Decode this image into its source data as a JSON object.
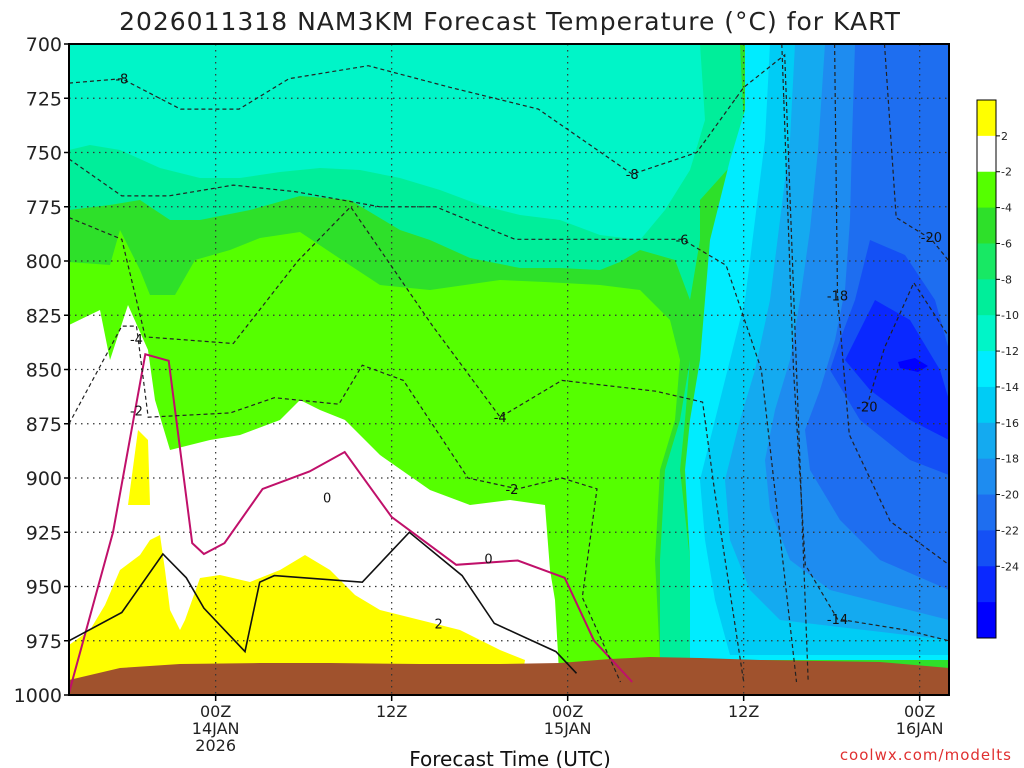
{
  "chart_data": {
    "type": "heatmap",
    "title": "2026011318 NAM3KM Forecast Temperature (°C) for KART",
    "xlabel": "Forecast Time (UTC)",
    "ylabel": "",
    "credit": "coolwx.com/modelts",
    "y_axis": {
      "units": "hPa",
      "range": [
        700,
        1000
      ],
      "ticks": [
        700,
        725,
        750,
        775,
        800,
        825,
        850,
        875,
        900,
        925,
        950,
        975,
        1000
      ]
    },
    "x_axis": {
      "range_hours": [
        -5,
        25
      ],
      "ticks": [
        {
          "hour": 0,
          "lines": [
            "00Z",
            "14JAN",
            "2026"
          ]
        },
        {
          "hour": 6,
          "lines": [
            "12Z"
          ]
        },
        {
          "hour": 12,
          "lines": [
            "00Z",
            "15JAN"
          ]
        },
        {
          "hour": 18,
          "lines": [
            "12Z"
          ]
        },
        {
          "hour": 24,
          "lines": [
            "00Z",
            "16JAN"
          ]
        }
      ],
      "grid": true
    },
    "colorbar": {
      "levels": [
        -26,
        -24,
        -22,
        -20,
        -18,
        -16,
        -14,
        -12,
        -10,
        -8,
        -6,
        -4,
        -2,
        2,
        4
      ],
      "colors": [
        "#0000ff",
        "#0a28ff",
        "#1450f5",
        "#1e6ef0",
        "#1e8cf0",
        "#14aaf0",
        "#00ccf5",
        "#00ecff",
        "#00f5c8",
        "#00ee9a",
        "#18e864",
        "#2ee02a",
        "#55ff00",
        "#ffffff",
        "#ffff00"
      ],
      "tick_labels": [
        "2",
        "-2",
        "-4",
        "-6",
        "-8",
        "-10",
        "-12",
        "-14",
        "-16",
        "-18",
        "-20",
        "-22",
        "-24"
      ]
    },
    "contour_labels": [
      {
        "text": "-8",
        "hour": -3.2,
        "pressure": 716
      },
      {
        "text": "-8",
        "hour": 14.2,
        "pressure": 760
      },
      {
        "text": "-6",
        "hour": 15.9,
        "pressure": 790
      },
      {
        "text": "-4",
        "hour": -2.7,
        "pressure": 836
      },
      {
        "text": "-2",
        "hour": -2.7,
        "pressure": 869
      },
      {
        "text": "-4",
        "hour": 9.7,
        "pressure": 872
      },
      {
        "text": "-2",
        "hour": 10.1,
        "pressure": 905
      },
      {
        "text": "0",
        "hour": 3.8,
        "pressure": 909
      },
      {
        "text": "0",
        "hour": 9.3,
        "pressure": 937
      },
      {
        "text": "2",
        "hour": 7.6,
        "pressure": 967
      },
      {
        "text": "-18",
        "hour": 21.2,
        "pressure": 816
      },
      {
        "text": "-20",
        "hour": 24.4,
        "pressure": 789
      },
      {
        "text": "-20",
        "hour": 22.2,
        "pressure": 867
      },
      {
        "text": "-14",
        "hour": 21.2,
        "pressure": 965
      }
    ],
    "series": [
      {
        "name": "freezing-line-0C",
        "points": [
          [
            -5,
            0.999
          ],
          [
            -3.5,
            0.925
          ],
          [
            -2.4,
            0.843
          ],
          [
            -1.6,
            0.846
          ],
          [
            -0.8,
            0.93
          ],
          [
            -0.4,
            0.935
          ],
          [
            0.3,
            0.93
          ],
          [
            1.6,
            0.905
          ],
          [
            3.2,
            0.897
          ],
          [
            4.4,
            0.888
          ],
          [
            6.0,
            0.918
          ],
          [
            8.2,
            0.94
          ],
          [
            10.3,
            0.938
          ],
          [
            11.9,
            0.946
          ],
          [
            12.9,
            0.975
          ],
          [
            14.2,
            0.994
          ]
        ]
      },
      {
        "name": "2C-line",
        "points": [
          [
            -5,
            0.975
          ],
          [
            -3.2,
            0.962
          ],
          [
            -1.8,
            0.935
          ],
          [
            -1.0,
            0.946
          ],
          [
            -0.4,
            0.96
          ],
          [
            1.0,
            0.98
          ],
          [
            1.5,
            0.948
          ],
          [
            2.0,
            0.945
          ],
          [
            5.0,
            0.948
          ],
          [
            6.6,
            0.925
          ],
          [
            8.4,
            0.945
          ],
          [
            9.5,
            0.967
          ],
          [
            11.6,
            0.98
          ],
          [
            12.3,
            0.99
          ]
        ]
      },
      {
        "name": "-2C-line",
        "points": [
          [
            -5,
            0.875
          ],
          [
            -3.2,
            0.83
          ],
          [
            -2.7,
            0.83
          ],
          [
            -2.3,
            0.872
          ],
          [
            0.5,
            0.87
          ],
          [
            2.0,
            0.863
          ],
          [
            4.2,
            0.866
          ],
          [
            5.0,
            0.848
          ],
          [
            6.4,
            0.855
          ],
          [
            8.6,
            0.9
          ],
          [
            10.3,
            0.905
          ],
          [
            11.8,
            0.9
          ],
          [
            13.0,
            0.905
          ],
          [
            12.5,
            0.955
          ],
          [
            13.8,
            0.994
          ]
        ]
      },
      {
        "name": "-4C-line",
        "points": [
          [
            -5,
            0.78
          ],
          [
            -3.2,
            0.79
          ],
          [
            -2.4,
            0.835
          ],
          [
            0.6,
            0.838
          ],
          [
            2.8,
            0.8
          ],
          [
            4.6,
            0.775
          ],
          [
            7.4,
            0.83
          ],
          [
            9.7,
            0.872
          ],
          [
            11.8,
            0.855
          ],
          [
            15.0,
            0.86
          ],
          [
            16.6,
            0.865
          ],
          [
            17.0,
            0.905
          ],
          [
            18.0,
            0.994
          ]
        ]
      },
      {
        "name": "-6C-line",
        "points": [
          [
            -5,
            0.753
          ],
          [
            -3.2,
            0.77
          ],
          [
            -1.6,
            0.77
          ],
          [
            0.6,
            0.765
          ],
          [
            2.7,
            0.768
          ],
          [
            5.6,
            0.775
          ],
          [
            7.5,
            0.775
          ],
          [
            10.2,
            0.79
          ],
          [
            13.3,
            0.79
          ],
          [
            15.9,
            0.79
          ],
          [
            17.4,
            0.802
          ],
          [
            18.6,
            0.85
          ],
          [
            19.8,
            0.994
          ]
        ]
      },
      {
        "name": "-8C-line",
        "points": [
          [
            -5,
            0.718
          ],
          [
            -3.2,
            0.716
          ],
          [
            -1.2,
            0.73
          ],
          [
            0.8,
            0.73
          ],
          [
            2.5,
            0.716
          ],
          [
            5.2,
            0.71
          ],
          [
            8.0,
            0.72
          ],
          [
            11.0,
            0.73
          ],
          [
            14.2,
            0.76
          ],
          [
            16.4,
            0.75
          ],
          [
            18.0,
            0.72
          ],
          [
            19.4,
            0.705
          ],
          [
            20.2,
            0.994
          ]
        ]
      },
      {
        "name": "-14C-line",
        "points": [
          [
            19.3,
            0.7
          ],
          [
            19.7,
            0.85
          ],
          [
            20.1,
            0.94
          ],
          [
            21.2,
            0.965
          ],
          [
            23.5,
            0.97
          ],
          [
            25,
            0.975
          ]
        ]
      },
      {
        "name": "-18C-line",
        "points": [
          [
            21.1,
            0.7
          ],
          [
            21.2,
            0.816
          ],
          [
            21.6,
            0.88
          ],
          [
            23.0,
            0.92
          ],
          [
            25,
            0.94
          ]
        ]
      },
      {
        "name": "-20C-line",
        "points": [
          [
            22.8,
            0.7
          ],
          [
            23.2,
            0.78
          ],
          [
            24.4,
            0.79
          ],
          [
            25,
            0.8
          ]
        ]
      },
      {
        "name": "-20C-core-line",
        "points": [
          [
            22.2,
            0.867
          ],
          [
            22.8,
            0.84
          ],
          [
            23.8,
            0.81
          ],
          [
            25,
            0.835
          ]
        ]
      }
    ]
  }
}
